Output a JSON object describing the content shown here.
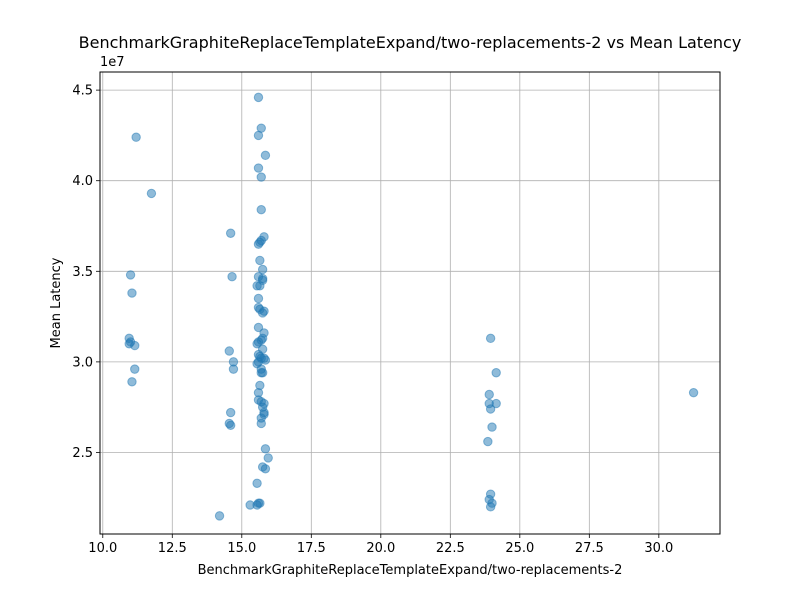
{
  "chart_data": {
    "type": "scatter",
    "title": "BenchmarkGraphiteReplaceTemplateExpand/two-replacements-2 vs Mean Latency",
    "xlabel": "BenchmarkGraphiteReplaceTemplateExpand/two-replacements-2",
    "ylabel": "Mean Latency",
    "y_offset_label": "1e7",
    "xlim": [
      9.9,
      32.2
    ],
    "ylim": [
      20500000.0,
      46000000.0
    ],
    "x_ticks": [
      10.0,
      12.5,
      15.0,
      17.5,
      20.0,
      22.5,
      25.0,
      27.5,
      30.0
    ],
    "x_tick_labels": [
      "10.0",
      "12.5",
      "15.0",
      "17.5",
      "20.0",
      "22.5",
      "25.0",
      "27.5",
      "30.0"
    ],
    "y_ticks": [
      25000000.0,
      30000000.0,
      35000000.0,
      40000000.0,
      45000000.0
    ],
    "y_tick_labels": [
      "2.5",
      "3.0",
      "3.5",
      "4.0",
      "4.5"
    ],
    "grid": true,
    "marker_color": "#1f77b4",
    "marker_alpha": 0.5,
    "points": [
      {
        "x": 11.2,
        "y": 42400000.0
      },
      {
        "x": 11.75,
        "y": 39300000.0
      },
      {
        "x": 11.0,
        "y": 34800000.0
      },
      {
        "x": 11.05,
        "y": 33800000.0
      },
      {
        "x": 10.95,
        "y": 31300000.0
      },
      {
        "x": 11.0,
        "y": 31100000.0
      },
      {
        "x": 10.95,
        "y": 31000000.0
      },
      {
        "x": 11.15,
        "y": 30900000.0
      },
      {
        "x": 11.15,
        "y": 29600000.0
      },
      {
        "x": 11.05,
        "y": 28900000.0
      },
      {
        "x": 14.6,
        "y": 37100000.0
      },
      {
        "x": 14.65,
        "y": 34700000.0
      },
      {
        "x": 14.55,
        "y": 30600000.0
      },
      {
        "x": 14.7,
        "y": 30000000.0
      },
      {
        "x": 14.7,
        "y": 29600000.0
      },
      {
        "x": 14.6,
        "y": 27200000.0
      },
      {
        "x": 14.55,
        "y": 26600000.0
      },
      {
        "x": 14.6,
        "y": 26500000.0
      },
      {
        "x": 14.2,
        "y": 21500000.0
      },
      {
        "x": 15.3,
        "y": 22100000.0
      },
      {
        "x": 15.6,
        "y": 44600000.0
      },
      {
        "x": 15.7,
        "y": 42900000.0
      },
      {
        "x": 15.6,
        "y": 42500000.0
      },
      {
        "x": 15.85,
        "y": 41400000.0
      },
      {
        "x": 15.6,
        "y": 40700000.0
      },
      {
        "x": 15.7,
        "y": 40200000.0
      },
      {
        "x": 15.7,
        "y": 38400000.0
      },
      {
        "x": 15.8,
        "y": 36900000.0
      },
      {
        "x": 15.7,
        "y": 36700000.0
      },
      {
        "x": 15.65,
        "y": 36600000.0
      },
      {
        "x": 15.6,
        "y": 36500000.0
      },
      {
        "x": 15.65,
        "y": 35600000.0
      },
      {
        "x": 15.75,
        "y": 35100000.0
      },
      {
        "x": 15.6,
        "y": 34700000.0
      },
      {
        "x": 15.75,
        "y": 34600000.0
      },
      {
        "x": 15.75,
        "y": 34500000.0
      },
      {
        "x": 15.65,
        "y": 34200000.0
      },
      {
        "x": 15.55,
        "y": 34200000.0
      },
      {
        "x": 15.6,
        "y": 33500000.0
      },
      {
        "x": 15.6,
        "y": 33000000.0
      },
      {
        "x": 15.65,
        "y": 32900000.0
      },
      {
        "x": 15.8,
        "y": 32800000.0
      },
      {
        "x": 15.75,
        "y": 32700000.0
      },
      {
        "x": 15.6,
        "y": 31900000.0
      },
      {
        "x": 15.8,
        "y": 31600000.0
      },
      {
        "x": 15.75,
        "y": 31300000.0
      },
      {
        "x": 15.7,
        "y": 31200000.0
      },
      {
        "x": 15.6,
        "y": 31100000.0
      },
      {
        "x": 15.55,
        "y": 31000000.0
      },
      {
        "x": 15.75,
        "y": 30700000.0
      },
      {
        "x": 15.6,
        "y": 30400000.0
      },
      {
        "x": 15.65,
        "y": 30300000.0
      },
      {
        "x": 15.7,
        "y": 30200000.0
      },
      {
        "x": 15.8,
        "y": 30200000.0
      },
      {
        "x": 15.85,
        "y": 30100000.0
      },
      {
        "x": 15.6,
        "y": 30000000.0
      },
      {
        "x": 15.55,
        "y": 29900000.0
      },
      {
        "x": 15.7,
        "y": 29600000.0
      },
      {
        "x": 15.7,
        "y": 29400000.0
      },
      {
        "x": 15.75,
        "y": 29400000.0
      },
      {
        "x": 15.65,
        "y": 28700000.0
      },
      {
        "x": 15.6,
        "y": 28300000.0
      },
      {
        "x": 15.6,
        "y": 27900000.0
      },
      {
        "x": 15.7,
        "y": 27800000.0
      },
      {
        "x": 15.8,
        "y": 27700000.0
      },
      {
        "x": 15.75,
        "y": 27500000.0
      },
      {
        "x": 15.8,
        "y": 27200000.0
      },
      {
        "x": 15.8,
        "y": 27100000.0
      },
      {
        "x": 15.7,
        "y": 26900000.0
      },
      {
        "x": 15.7,
        "y": 26600000.0
      },
      {
        "x": 15.85,
        "y": 25200000.0
      },
      {
        "x": 15.95,
        "y": 24700000.0
      },
      {
        "x": 15.75,
        "y": 24200000.0
      },
      {
        "x": 15.85,
        "y": 24100000.0
      },
      {
        "x": 15.55,
        "y": 23300000.0
      },
      {
        "x": 15.6,
        "y": 22200000.0
      },
      {
        "x": 15.65,
        "y": 22200000.0
      },
      {
        "x": 15.55,
        "y": 22100000.0
      },
      {
        "x": 23.95,
        "y": 31300000.0
      },
      {
        "x": 24.15,
        "y": 29400000.0
      },
      {
        "x": 23.9,
        "y": 28200000.0
      },
      {
        "x": 23.9,
        "y": 27700000.0
      },
      {
        "x": 24.15,
        "y": 27700000.0
      },
      {
        "x": 23.95,
        "y": 27400000.0
      },
      {
        "x": 24.0,
        "y": 26400000.0
      },
      {
        "x": 23.85,
        "y": 25600000.0
      },
      {
        "x": 23.95,
        "y": 22700000.0
      },
      {
        "x": 23.9,
        "y": 22400000.0
      },
      {
        "x": 24.0,
        "y": 22200000.0
      },
      {
        "x": 23.95,
        "y": 22000000.0
      },
      {
        "x": 31.25,
        "y": 28300000.0
      }
    ]
  }
}
